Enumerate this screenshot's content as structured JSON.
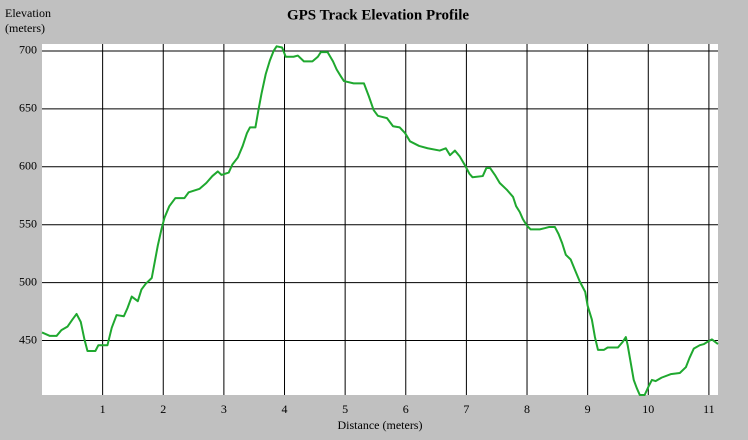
{
  "chart_data": {
    "type": "line",
    "title": "GPS Track Elevation Profile",
    "x_label": "Distance (meters)",
    "y_label": "Elevation (meters)",
    "color": "#1fa82f",
    "grid": true,
    "xlim": [
      0,
      11.15
    ],
    "ylim": [
      403,
      706
    ],
    "xticks": [
      1,
      2,
      3,
      4,
      5,
      6,
      7,
      8,
      9,
      10,
      11
    ],
    "yticks": [
      450,
      500,
      550,
      600,
      650,
      700
    ],
    "x": [
      0,
      0.13,
      0.24,
      0.32,
      0.42,
      0.5,
      0.57,
      0.64,
      0.7,
      0.75,
      0.88,
      0.93,
      1.08,
      1.15,
      1.23,
      1.35,
      1.41,
      1.48,
      1.58,
      1.64,
      1.71,
      1.81,
      1.86,
      1.91,
      1.97,
      2.02,
      2.1,
      2.2,
      2.35,
      2.42,
      2.6,
      2.71,
      2.81,
      2.9,
      2.96,
      3.08,
      3.14,
      3.23,
      3.31,
      3.38,
      3.43,
      3.52,
      3.57,
      3.62,
      3.69,
      3.76,
      3.82,
      3.87,
      3.96,
      4.02,
      4.15,
      4.22,
      4.32,
      4.46,
      4.55,
      4.6,
      4.71,
      4.8,
      4.86,
      4.93,
      4.98,
      5.14,
      5.31,
      5.39,
      5.47,
      5.54,
      5.69,
      5.79,
      5.9,
      5.99,
      6.07,
      6.22,
      6.36,
      6.56,
      6.66,
      6.73,
      6.81,
      6.89,
      6.99,
      7.05,
      7.1,
      7.27,
      7.33,
      7.39,
      7.47,
      7.55,
      7.67,
      7.77,
      7.82,
      7.88,
      7.93,
      8.0,
      8.06,
      8.21,
      8.29,
      8.36,
      8.46,
      8.52,
      8.58,
      8.64,
      8.72,
      8.79,
      8.87,
      8.96,
      9.0,
      9.07,
      9.12,
      9.17,
      9.27,
      9.33,
      9.5,
      9.58,
      9.63,
      9.66,
      9.71,
      9.76,
      9.81,
      9.86,
      9.94,
      10.01,
      10.06,
      10.12,
      10.22,
      10.37,
      10.52,
      10.62,
      10.68,
      10.75,
      10.85,
      10.92,
      10.98,
      11.05,
      11.15
    ],
    "values": [
      457,
      454,
      454,
      459,
      462,
      468,
      473,
      466,
      451,
      441,
      441,
      446,
      446,
      461,
      472,
      471,
      478,
      488,
      484,
      494,
      499,
      504,
      518,
      532,
      546,
      556,
      566,
      573,
      573,
      578,
      581,
      586,
      592,
      596,
      593,
      595,
      602,
      608,
      618,
      629,
      634,
      634,
      649,
      663,
      680,
      692,
      700,
      704,
      703,
      695,
      695,
      696,
      691,
      691,
      695,
      699,
      699,
      691,
      684,
      678,
      674,
      672,
      672,
      661,
      649,
      644,
      642,
      635,
      634,
      629,
      622,
      618,
      616,
      614,
      616,
      610,
      614,
      609,
      600,
      594,
      591,
      592,
      599,
      599,
      593,
      586,
      580,
      574,
      566,
      561,
      555,
      549,
      546,
      546,
      547,
      548,
      548,
      542,
      534,
      524,
      520,
      511,
      501,
      492,
      480,
      468,
      453,
      442,
      442,
      444,
      444,
      449,
      453,
      446,
      431,
      416,
      409,
      403,
      403,
      411,
      416,
      415,
      418,
      421,
      422,
      427,
      435,
      443,
      446,
      447,
      449,
      451,
      447
    ]
  }
}
